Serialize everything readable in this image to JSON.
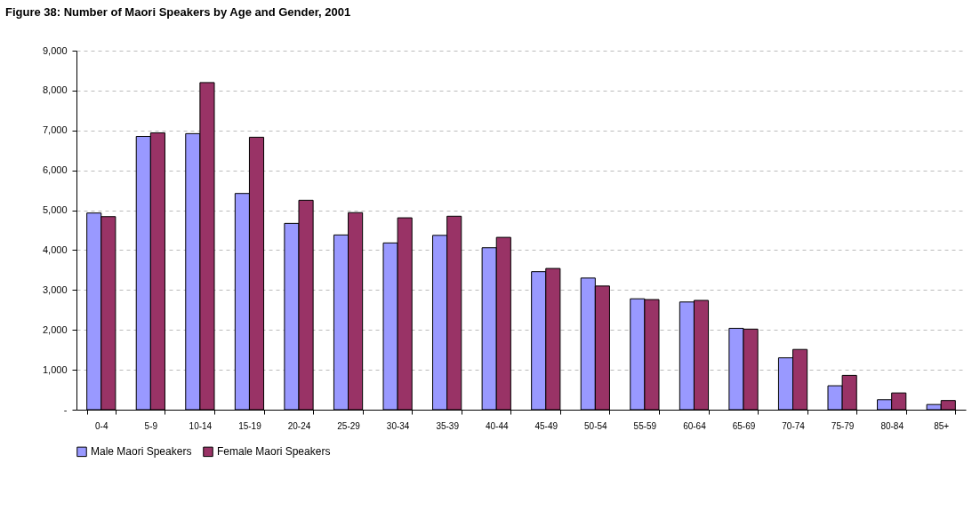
{
  "chart_data": {
    "type": "bar",
    "title": "Figure 38: Number of Maori Speakers by Age and Gender, 2001",
    "categories": [
      "0-4",
      "5-9",
      "10-14",
      "15-19",
      "20-24",
      "25-29",
      "30-34",
      "35-39",
      "40-44",
      "45-49",
      "50-54",
      "55-59",
      "60-64",
      "65-69",
      "70-74",
      "75-79",
      "80-84",
      "85+"
    ],
    "series": [
      {
        "name": "Male Maori Speakers",
        "color": "#9999ff",
        "values": [
          4930,
          6850,
          6920,
          5420,
          4670,
          4380,
          4180,
          4370,
          4060,
          3460,
          3300,
          2780,
          2700,
          2040,
          1300,
          600,
          250,
          130
        ]
      },
      {
        "name": "Female Maori Speakers",
        "color": "#993366",
        "values": [
          4840,
          6940,
          8200,
          6830,
          5250,
          4940,
          4810,
          4850,
          4320,
          3540,
          3100,
          2760,
          2740,
          2020,
          1510,
          860,
          420,
          230
        ]
      }
    ],
    "ylim": [
      0,
      9000
    ],
    "yticks": [
      {
        "value": 0,
        "label": "-"
      },
      {
        "value": 1000,
        "label": "1,000"
      },
      {
        "value": 2000,
        "label": "2,000"
      },
      {
        "value": 3000,
        "label": "3,000"
      },
      {
        "value": 4000,
        "label": "4,000"
      },
      {
        "value": 5000,
        "label": "5,000"
      },
      {
        "value": 6000,
        "label": "6,000"
      },
      {
        "value": 7000,
        "label": "7,000"
      },
      {
        "value": 8000,
        "label": "8,000"
      },
      {
        "value": 9000,
        "label": "9,000"
      }
    ],
    "grid": "y",
    "legend": "bottom"
  }
}
